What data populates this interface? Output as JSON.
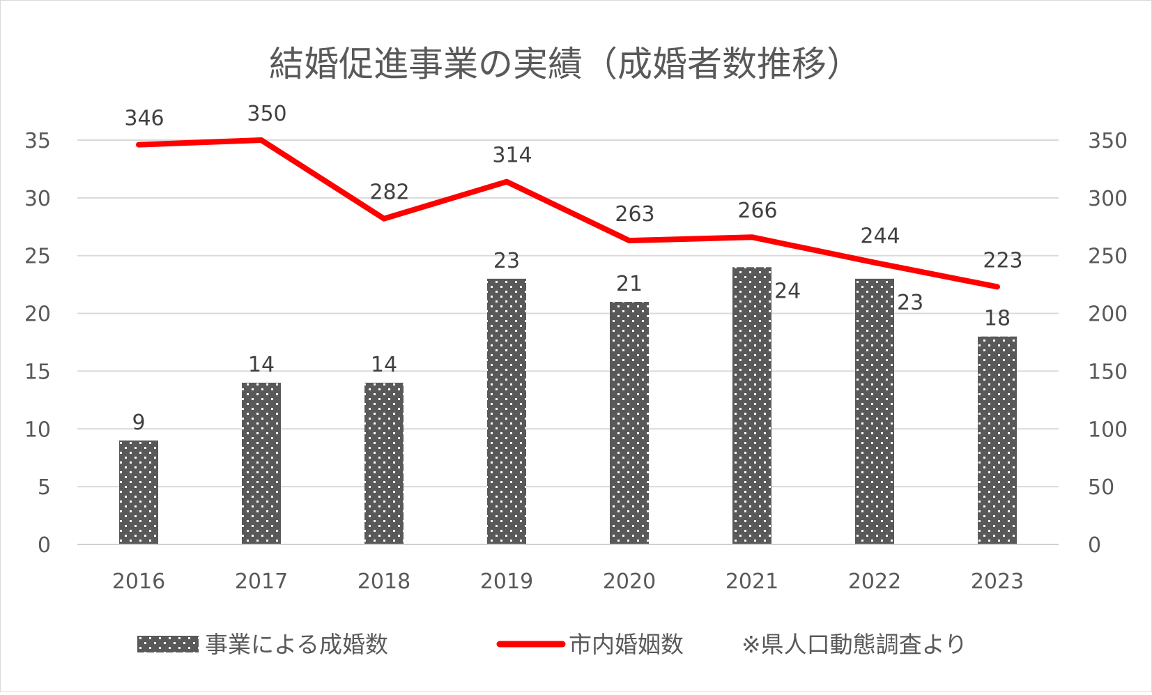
{
  "chart_data": {
    "type": "bar",
    "title": "結婚促進事業の実績（成婚者数推移）",
    "categories": [
      "2016",
      "2017",
      "2018",
      "2019",
      "2020",
      "2021",
      "2022",
      "2023"
    ],
    "series": [
      {
        "name": "事業による成婚数",
        "type": "bar",
        "axis": "left",
        "color": "#595959",
        "values": [
          9,
          14,
          14,
          23,
          21,
          24,
          23,
          18
        ],
        "labels": [
          "9",
          "14",
          "14",
          "23",
          "21",
          "24",
          "23",
          "18"
        ]
      },
      {
        "name": "市内婚姻数",
        "type": "line",
        "axis": "right",
        "color": "#ff0000",
        "values": [
          346,
          350,
          282,
          314,
          263,
          266,
          244,
          223
        ],
        "labels": [
          "346",
          "350",
          "282",
          "314",
          "263",
          "266",
          "244",
          "223"
        ]
      }
    ],
    "y_left": {
      "min": 0,
      "max": 35,
      "step": 5,
      "ticks": [
        "0",
        "5",
        "10",
        "15",
        "20",
        "25",
        "30",
        "35"
      ]
    },
    "y_right": {
      "min": 0,
      "max": 350,
      "step": 50,
      "ticks": [
        "0",
        "50",
        "100",
        "150",
        "200",
        "250",
        "300",
        "350"
      ]
    },
    "grid": true,
    "legend_position": "bottom",
    "note": "※県人口動態調査より"
  }
}
